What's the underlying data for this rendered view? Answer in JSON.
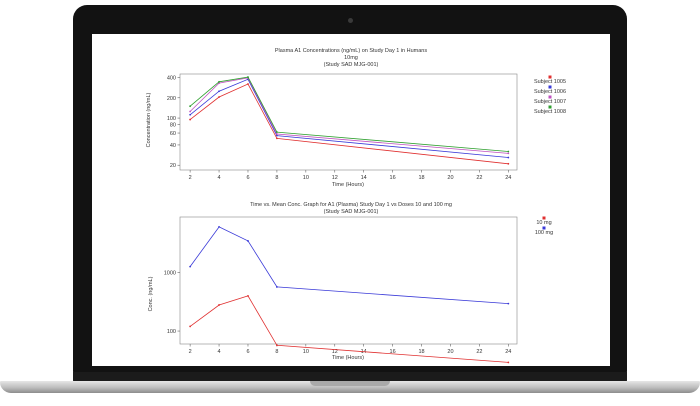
{
  "chart_data": [
    {
      "type": "line",
      "title": "Plasma A1 Concentrations (ng/mL) on Study Day 1 in Humans",
      "subtitle_lines": [
        "10mg",
        "(Study SAD MJG-001)"
      ],
      "xlabel": "Time (Hours)",
      "ylabel": "Concentration (ng/mL)",
      "y_scale": "log",
      "xlim": [
        1.3,
        24.6
      ],
      "ylim": [
        17,
        450
      ],
      "x_ticks": [
        2,
        4,
        6,
        8,
        10,
        12,
        14,
        16,
        18,
        20,
        22,
        24
      ],
      "y_ticks": [
        20,
        40,
        60,
        80,
        100,
        200,
        400
      ],
      "legend_placement": "right",
      "x": [
        2,
        4,
        6,
        8,
        24
      ],
      "series": [
        {
          "name": "Subject  1005",
          "color": "#e03030",
          "values": [
            95,
            205,
            320,
            50,
            21
          ]
        },
        {
          "name": "Subject  1006",
          "color": "#3a3ad8",
          "values": [
            112,
            250,
            375,
            55,
            26
          ]
        },
        {
          "name": "Subject  1007",
          "color": "#c050c0",
          "values": [
            125,
            330,
            395,
            58,
            30
          ]
        },
        {
          "name": "Subject  1008",
          "color": "#30a030",
          "values": [
            150,
            345,
            405,
            62,
            32
          ]
        }
      ]
    },
    {
      "type": "line",
      "title": "Time vs. Mean Conc. Graph for A1 (Plasma) Study Day 1 vs Doses 10 and 100 mg",
      "subtitle_lines": [
        "(Study SAD MJG-001)"
      ],
      "xlabel": "Time (Hours)",
      "ylabel": "Conc. (ng/mL)",
      "y_scale": "log",
      "xlim": [
        1.3,
        24.6
      ],
      "ylim": [
        60,
        9000
      ],
      "x_ticks": [
        2,
        4,
        6,
        8,
        10,
        12,
        14,
        16,
        18,
        20,
        22,
        24
      ],
      "y_ticks": [
        100,
        1000
      ],
      "legend_placement": "right",
      "x": [
        2,
        4,
        6,
        8,
        24
      ],
      "series": [
        {
          "name": "10 mg",
          "color": "#e03030",
          "values": [
            120,
            280,
            400,
            57,
            29
          ]
        },
        {
          "name": "100 mg",
          "color": "#3a3ad8",
          "values": [
            1270,
            6100,
            3500,
            570,
            295
          ]
        }
      ]
    }
  ]
}
